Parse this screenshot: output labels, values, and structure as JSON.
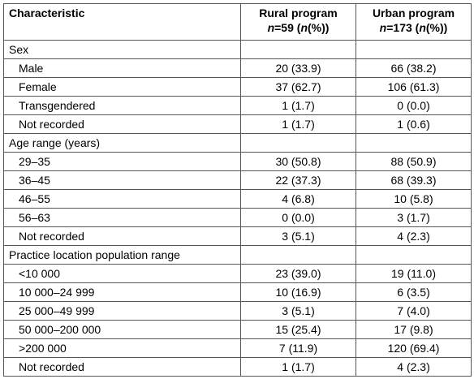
{
  "header": {
    "characteristic": "Characteristic",
    "rural_title": "Rural program",
    "rural_n_var": "n",
    "rural_n_rest": "=59 (",
    "rural_n_var2": "n",
    "rural_n_tail": "(%))",
    "urban_title": "Urban program",
    "urban_n_var": "n",
    "urban_n_rest": "=173 (",
    "urban_n_var2": "n",
    "urban_n_tail": "(%))"
  },
  "sections": [
    {
      "title": "Sex",
      "rows": [
        {
          "label": "Male",
          "rural": "20 (33.9)",
          "urban": "66 (38.2)"
        },
        {
          "label": "Female",
          "rural": "37 (62.7)",
          "urban": "106 (61.3)"
        },
        {
          "label": "Transgendered",
          "rural": "1 (1.7)",
          "urban": "0 (0.0)"
        },
        {
          "label": "Not recorded",
          "rural": "1 (1.7)",
          "urban": "1 (0.6)"
        }
      ]
    },
    {
      "title": "Age range (years)",
      "rows": [
        {
          "label": "29–35",
          "rural": "30 (50.8)",
          "urban": "88 (50.9)"
        },
        {
          "label": "36–45",
          "rural": "22 (37.3)",
          "urban": "68 (39.3)"
        },
        {
          "label": "46–55",
          "rural": "4 (6.8)",
          "urban": "10 (5.8)"
        },
        {
          "label": "56–63",
          "rural": "0 (0.0)",
          "urban": "3 (1.7)"
        },
        {
          "label": "Not recorded",
          "rural": "3 (5.1)",
          "urban": "4 (2.3)"
        }
      ]
    },
    {
      "title": "Practice location population range",
      "rows": [
        {
          "label": "<10 000",
          "rural": "23 (39.0)",
          "urban": "19 (11.0)"
        },
        {
          "label": "10 000–24 999",
          "rural": "10 (16.9)",
          "urban": "6 (3.5)"
        },
        {
          "label": "25 000–49 999",
          "rural": "3 (5.1)",
          "urban": "7 (4.0)"
        },
        {
          "label": "50 000–200 000",
          "rural": "15 (25.4)",
          "urban": "17 (9.8)"
        },
        {
          "label": ">200 000",
          "rural": "7 (11.9)",
          "urban": "120 (69.4)"
        },
        {
          "label": "Not recorded",
          "rural": "1 (1.7)",
          "urban": "4 (2.3)"
        }
      ]
    }
  ]
}
